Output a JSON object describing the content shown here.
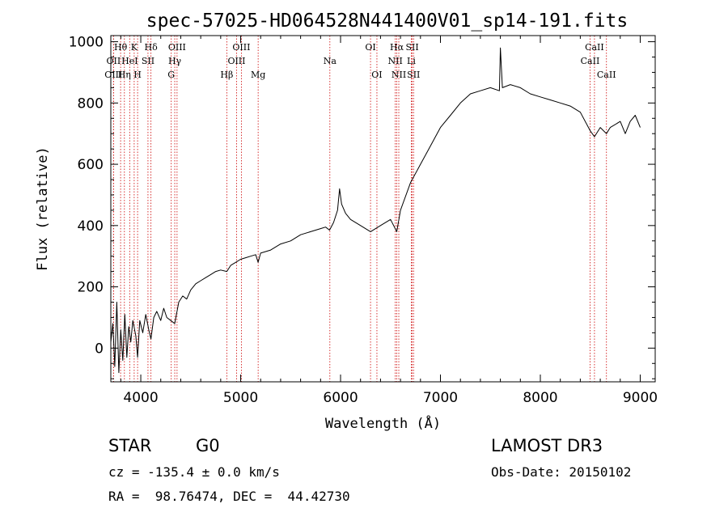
{
  "chart_data": {
    "type": "line",
    "title": "spec-57025-HD064528N441400V01_sp14-191.fits",
    "xlabel": "Wavelength (Å)",
    "ylabel": "Flux (relative)",
    "xlim": [
      3700,
      9150
    ],
    "ylim": [
      -110,
      1020
    ],
    "xticks": [
      4000,
      5000,
      6000,
      7000,
      8000,
      9000
    ],
    "yticks": [
      0,
      200,
      400,
      600,
      800,
      1000
    ],
    "grid": false,
    "series": [
      {
        "name": "spectrum",
        "points": [
          [
            3700,
            20
          ],
          [
            3720,
            80
          ],
          [
            3740,
            -60
          ],
          [
            3760,
            150
          ],
          [
            3780,
            -80
          ],
          [
            3800,
            60
          ],
          [
            3820,
            -40
          ],
          [
            3840,
            110
          ],
          [
            3860,
            -30
          ],
          [
            3880,
            70
          ],
          [
            3900,
            20
          ],
          [
            3920,
            90
          ],
          [
            3950,
            40
          ],
          [
            3968,
            -30
          ],
          [
            3990,
            90
          ],
          [
            4020,
            50
          ],
          [
            4050,
            110
          ],
          [
            4080,
            60
          ],
          [
            4102,
            30
          ],
          [
            4130,
            100
          ],
          [
            4160,
            120
          ],
          [
            4200,
            90
          ],
          [
            4230,
            130
          ],
          [
            4260,
            100
          ],
          [
            4300,
            90
          ],
          [
            4340,
            80
          ],
          [
            4380,
            150
          ],
          [
            4420,
            170
          ],
          [
            4460,
            160
          ],
          [
            4500,
            190
          ],
          [
            4550,
            210
          ],
          [
            4600,
            220
          ],
          [
            4650,
            230
          ],
          [
            4700,
            240
          ],
          [
            4750,
            250
          ],
          [
            4800,
            255
          ],
          [
            4861,
            250
          ],
          [
            4900,
            270
          ],
          [
            4950,
            280
          ],
          [
            5000,
            290
          ],
          [
            5050,
            295
          ],
          [
            5100,
            300
          ],
          [
            5150,
            305
          ],
          [
            5175,
            280
          ],
          [
            5200,
            310
          ],
          [
            5300,
            320
          ],
          [
            5400,
            340
          ],
          [
            5500,
            350
          ],
          [
            5600,
            370
          ],
          [
            5700,
            380
          ],
          [
            5800,
            390
          ],
          [
            5850,
            395
          ],
          [
            5890,
            385
          ],
          [
            5930,
            410
          ],
          [
            5970,
            450
          ],
          [
            5990,
            520
          ],
          [
            6010,
            470
          ],
          [
            6050,
            440
          ],
          [
            6100,
            420
          ],
          [
            6200,
            400
          ],
          [
            6300,
            380
          ],
          [
            6400,
            400
          ],
          [
            6500,
            420
          ],
          [
            6563,
            380
          ],
          [
            6600,
            450
          ],
          [
            6700,
            540
          ],
          [
            6800,
            600
          ],
          [
            6900,
            660
          ],
          [
            7000,
            720
          ],
          [
            7100,
            760
          ],
          [
            7200,
            800
          ],
          [
            7300,
            830
          ],
          [
            7400,
            840
          ],
          [
            7500,
            850
          ],
          [
            7590,
            840
          ],
          [
            7600,
            980
          ],
          [
            7620,
            850
          ],
          [
            7700,
            860
          ],
          [
            7800,
            850
          ],
          [
            7900,
            830
          ],
          [
            8000,
            820
          ],
          [
            8100,
            810
          ],
          [
            8200,
            800
          ],
          [
            8300,
            790
          ],
          [
            8400,
            770
          ],
          [
            8498,
            710
          ],
          [
            8542,
            690
          ],
          [
            8600,
            720
          ],
          [
            8662,
            700
          ],
          [
            8700,
            720
          ],
          [
            8800,
            740
          ],
          [
            8850,
            700
          ],
          [
            8900,
            740
          ],
          [
            8950,
            760
          ],
          [
            9000,
            720
          ]
        ]
      }
    ],
    "lines": [
      {
        "name": "Hθ",
        "wavelength": 3798,
        "row": 0
      },
      {
        "name": "OII",
        "wavelength": 3727,
        "row": 1
      },
      {
        "name": "OIII",
        "wavelength": 3727,
        "row": 2
      },
      {
        "name": "Hη",
        "wavelength": 3836,
        "row": 2
      },
      {
        "name": "K",
        "wavelength": 3934,
        "row": 0
      },
      {
        "name": "HeI",
        "wavelength": 3889,
        "row": 1
      },
      {
        "name": "H",
        "wavelength": 3968,
        "row": 2
      },
      {
        "name": "SII",
        "wavelength": 4072,
        "row": 1
      },
      {
        "name": "Hδ",
        "wavelength": 4102,
        "row": 0
      },
      {
        "name": "OIII",
        "wavelength": 4363,
        "row": 0
      },
      {
        "name": "Hγ",
        "wavelength": 4340,
        "row": 1
      },
      {
        "name": "G",
        "wavelength": 4305,
        "row": 2
      },
      {
        "name": "Hβ",
        "wavelength": 4861,
        "row": 2
      },
      {
        "name": "OIII",
        "wavelength": 5007,
        "row": 0
      },
      {
        "name": "OIII",
        "wavelength": 4959,
        "row": 1
      },
      {
        "name": "Mg",
        "wavelength": 5175,
        "row": 2
      },
      {
        "name": "Na",
        "wavelength": 5893,
        "row": 1
      },
      {
        "name": "OI",
        "wavelength": 6300,
        "row": 0
      },
      {
        "name": "OI",
        "wavelength": 6364,
        "row": 2
      },
      {
        "name": "Hα",
        "wavelength": 6563,
        "row": 0
      },
      {
        "name": "NII",
        "wavelength": 6548,
        "row": 1
      },
      {
        "name": "NII",
        "wavelength": 6583,
        "row": 2
      },
      {
        "name": "SII",
        "wavelength": 6717,
        "row": 0
      },
      {
        "name": "Li",
        "wavelength": 6708,
        "row": 1
      },
      {
        "name": "SII",
        "wavelength": 6731,
        "row": 2
      },
      {
        "name": "CaII",
        "wavelength": 8542,
        "row": 0
      },
      {
        "name": "CaII",
        "wavelength": 8498,
        "row": 1
      },
      {
        "name": "CaII",
        "wavelength": 8662,
        "row": 2
      }
    ]
  },
  "info": {
    "object_class": "STAR",
    "subclass": "G0",
    "survey": "LAMOST DR3",
    "redshift": "cz = -135.4 ± 0.0 km/s",
    "obs_date": "Obs-Date: 20150102",
    "coords": "RA =  98.76474, DEC =  44.42730"
  },
  "colors": {
    "line_marker": "#cc0000",
    "spectrum": "#000000",
    "axis": "#000000"
  }
}
